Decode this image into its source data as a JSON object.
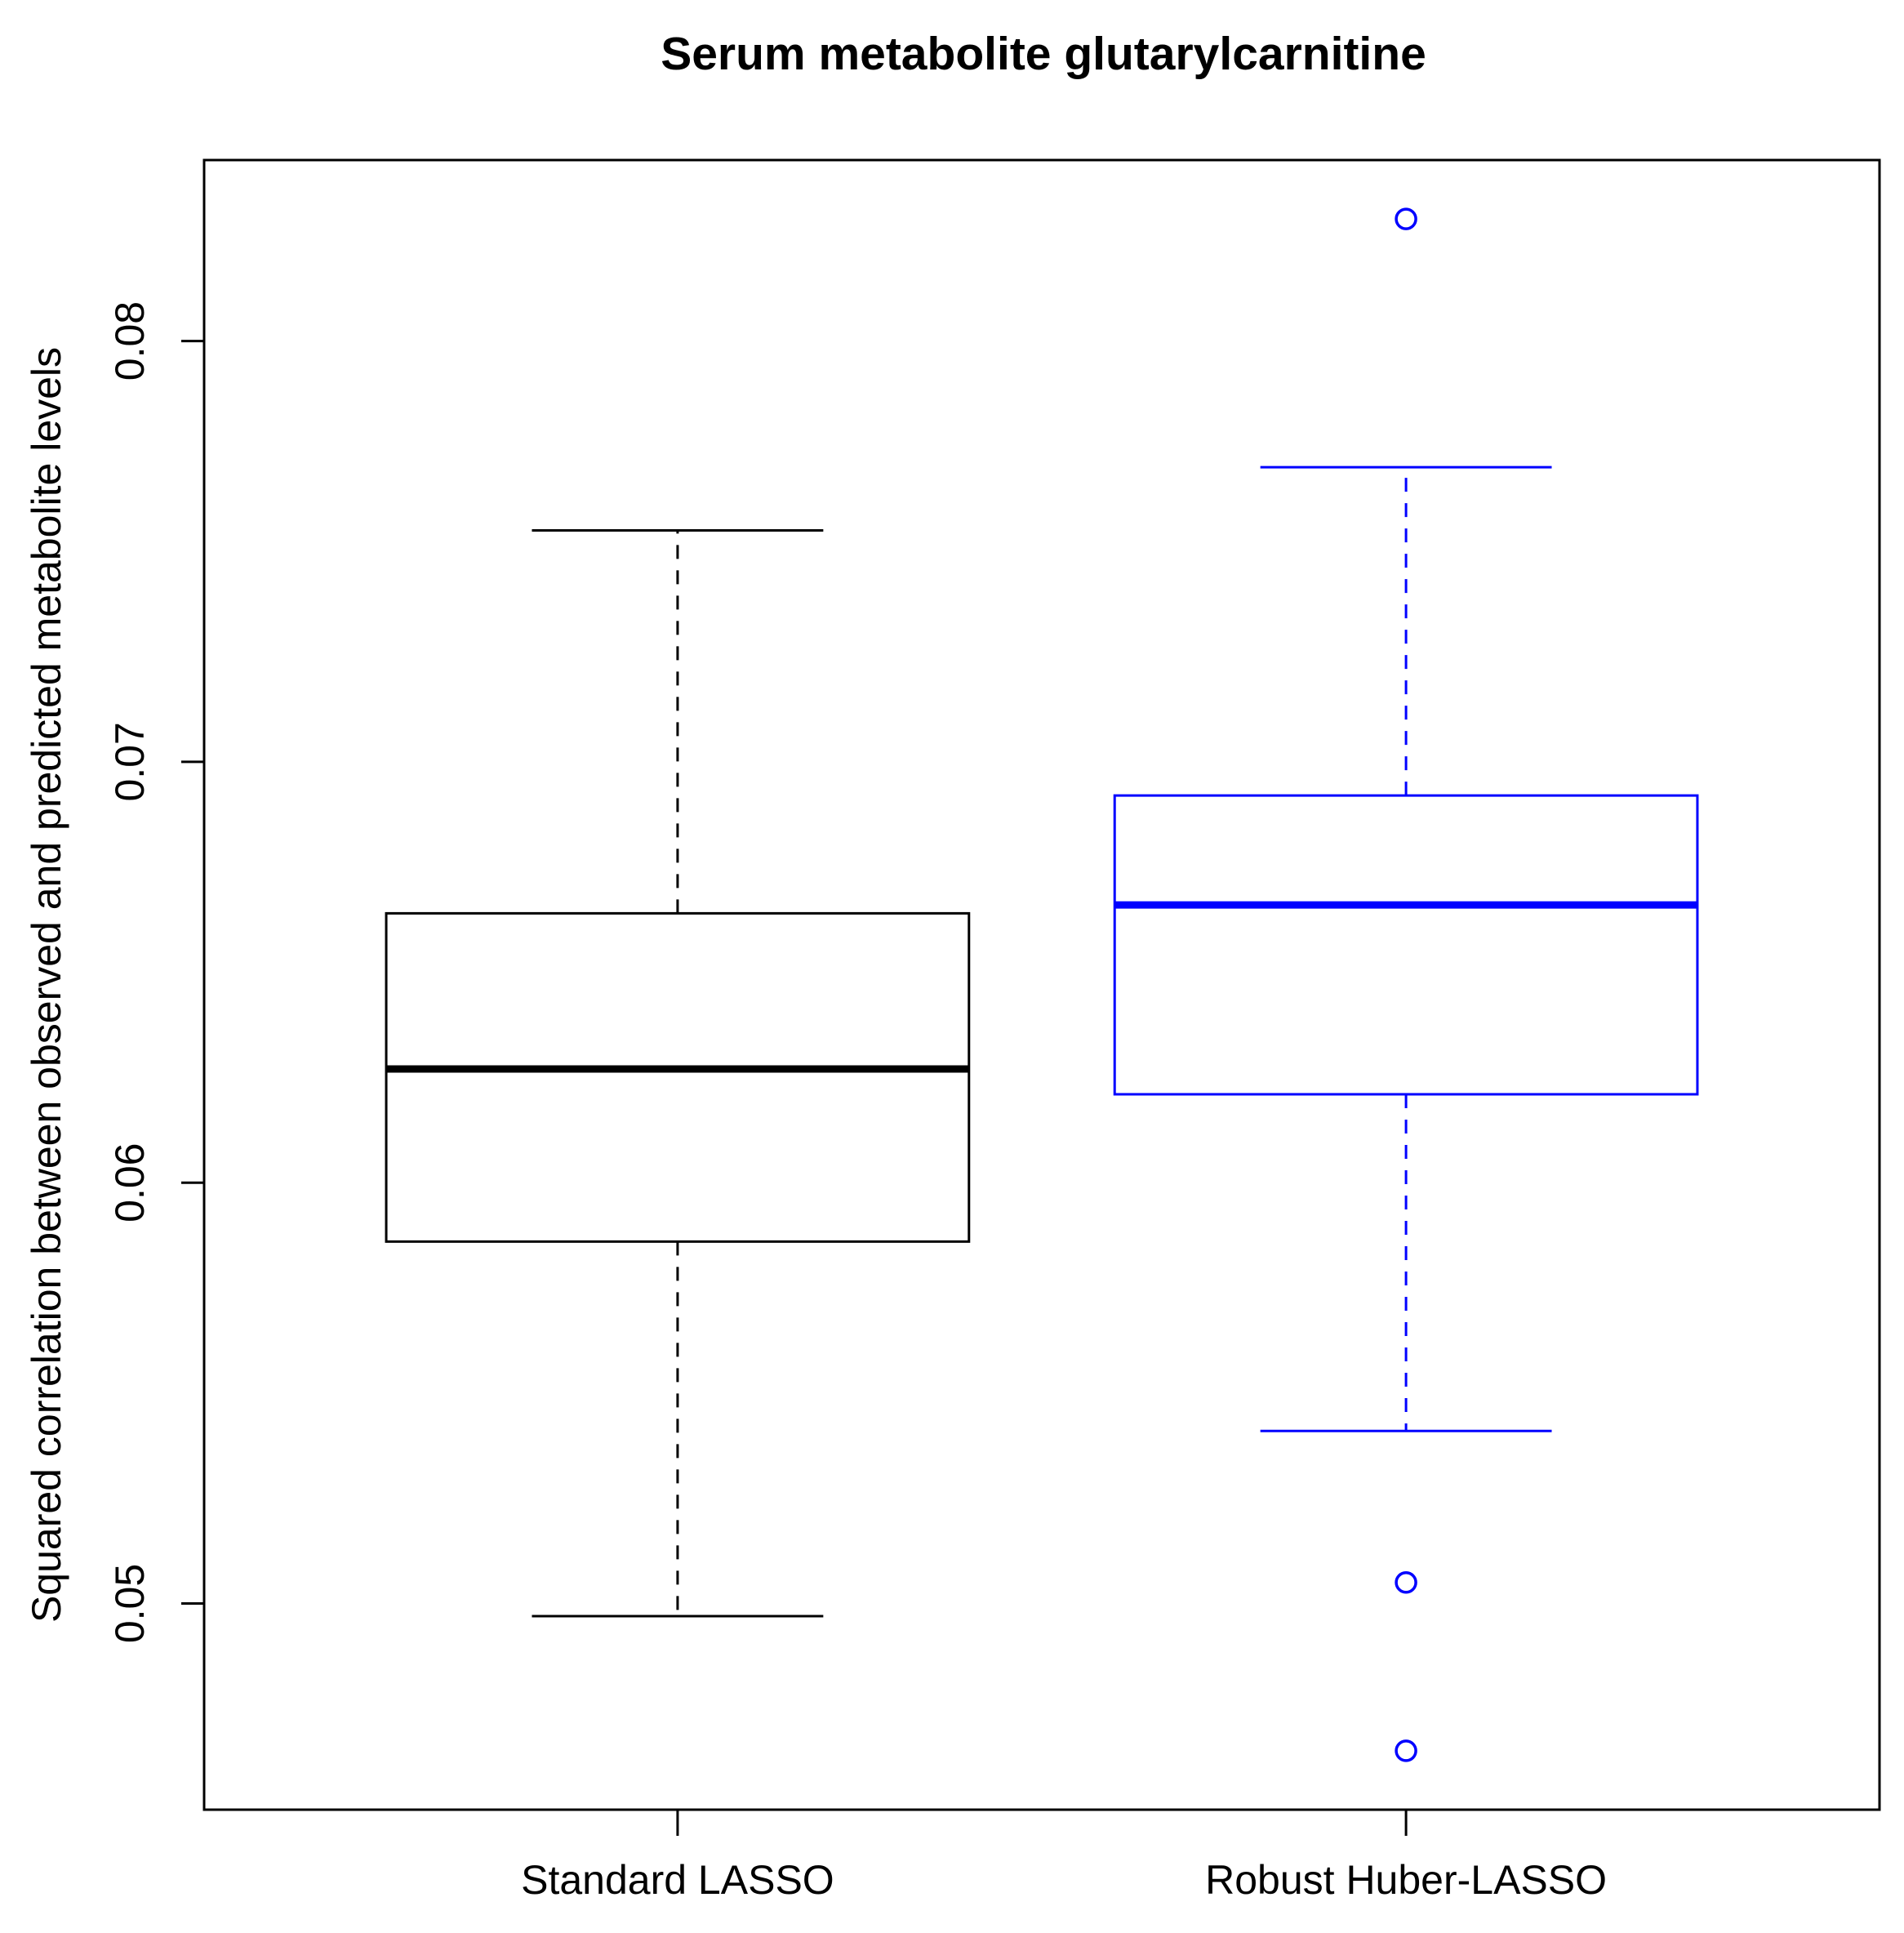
{
  "chart_data": {
    "type": "boxplot",
    "title": "Serum metabolite glutarylcarnitine",
    "xlabel": "",
    "ylabel": "Squared correlation between observed and predicted metabolite levels",
    "categories": [
      "Standard LASSO",
      "Robust Huber-LASSO"
    ],
    "ylim": [
      0.0451,
      0.0843
    ],
    "yticks": [
      0.05,
      0.06,
      0.07,
      0.08
    ],
    "ytick_labels": [
      "0.05",
      "0.06",
      "0.07",
      "0.08"
    ],
    "grid": false,
    "legend": "none",
    "boxes": [
      {
        "category": "Standard LASSO",
        "color": "#000000",
        "whisker_low": 0.0497,
        "q1": 0.0586,
        "median": 0.0627,
        "q3": 0.0664,
        "whisker_high": 0.0755,
        "outliers": []
      },
      {
        "category": "Robust Huber-LASSO",
        "color": "#0000ff",
        "whisker_low": 0.0541,
        "q1": 0.0621,
        "median": 0.0666,
        "q3": 0.0692,
        "whisker_high": 0.077,
        "outliers": [
          0.0829,
          0.0505,
          0.0465
        ]
      }
    ]
  }
}
